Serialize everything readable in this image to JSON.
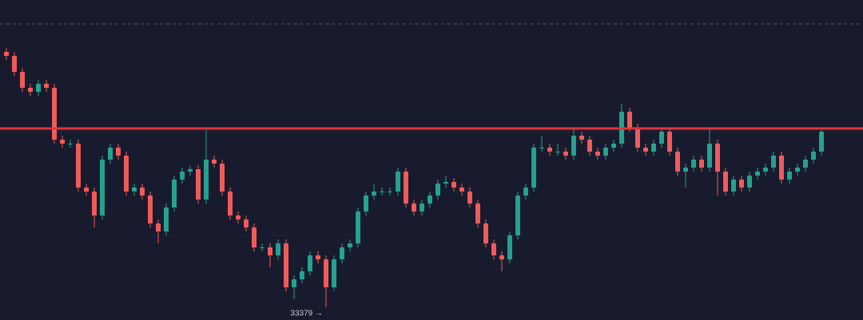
{
  "chart_data": {
    "type": "candlestick",
    "up_color": "#26a18f",
    "down_color": "#ef5b5b",
    "ylim": [
      33315,
      34919
    ],
    "open": [
      34659,
      34639,
      34559,
      34479,
      34459,
      34499,
      34479,
      34219,
      34199,
      34199,
      33979,
      33959,
      33839,
      34119,
      34179,
      34139,
      33959,
      33979,
      33939,
      33799,
      33759,
      33879,
      34019,
      34059,
      34071,
      33919,
      34119,
      34099,
      33959,
      33839,
      33819,
      33779,
      33679,
      33679,
      33639,
      33699,
      33479,
      33519,
      33559,
      33639,
      33619,
      33479,
      33619,
      33679,
      33699,
      33859,
      33939,
      33959,
      33959,
      33959,
      34059,
      33899,
      33859,
      33899,
      33939,
      33999,
      34007,
      33979,
      33959,
      33899,
      33799,
      33699,
      33639,
      33619,
      33739,
      33939,
      33979,
      34179,
      34179,
      34159,
      34159,
      34139,
      34239,
      34219,
      34159,
      34139,
      34179,
      34199,
      34359,
      34279,
      34179,
      34159,
      34199,
      34259,
      34159,
      34059,
      34079,
      34119,
      34079,
      34199,
      34059,
      33959,
      34019,
      33979,
      34039,
      34059,
      34079,
      34139,
      34019,
      34059,
      34079,
      34119,
      34159
    ],
    "high": [
      34679,
      34659,
      34579,
      34499,
      34519,
      34519,
      34499,
      34239,
      34219,
      34219,
      33999,
      33979,
      34139,
      34199,
      34199,
      34159,
      33999,
      33999,
      33959,
      33819,
      33899,
      34039,
      34079,
      34091,
      34091,
      34279,
      34139,
      34119,
      33979,
      33859,
      33839,
      33799,
      33699,
      33699,
      33719,
      33719,
      33539,
      33579,
      33659,
      33659,
      33639,
      33639,
      33699,
      33719,
      33879,
      33959,
      33999,
      33979,
      33979,
      34079,
      34079,
      33919,
      33919,
      33959,
      34019,
      34039,
      34027,
      33999,
      33979,
      33919,
      33819,
      33719,
      33659,
      33759,
      33959,
      33999,
      34199,
      34239,
      34199,
      34199,
      34179,
      34279,
      34259,
      34239,
      34179,
      34199,
      34219,
      34399,
      34379,
      34299,
      34199,
      34219,
      34279,
      34279,
      34179,
      34099,
      34139,
      34139,
      34279,
      34219,
      34079,
      34039,
      34039,
      34059,
      34079,
      34099,
      34159,
      34159,
      34079,
      34099,
      34139,
      34179,
      34279
    ],
    "low": [
      34619,
      34539,
      34459,
      34439,
      34439,
      34459,
      34199,
      34179,
      34179,
      33959,
      33939,
      33779,
      33819,
      34099,
      34119,
      33939,
      33939,
      33919,
      33779,
      33699,
      33739,
      33859,
      33999,
      34039,
      33899,
      33899,
      34079,
      33939,
      33819,
      33799,
      33759,
      33659,
      33659,
      33579,
      33619,
      33459,
      33419,
      33499,
      33539,
      33599,
      33379,
      33459,
      33599,
      33659,
      33679,
      33839,
      33919,
      33939,
      33939,
      33939,
      33879,
      33839,
      33839,
      33879,
      33919,
      33979,
      33959,
      33939,
      33879,
      33779,
      33679,
      33619,
      33559,
      33599,
      33719,
      33919,
      33959,
      34159,
      34139,
      34139,
      34119,
      34119,
      34199,
      34139,
      34119,
      34119,
      34159,
      34179,
      34259,
      34159,
      34139,
      34139,
      34179,
      34139,
      34039,
      33979,
      34059,
      34059,
      34059,
      33939,
      33939,
      33939,
      33959,
      33959,
      34019,
      34039,
      34059,
      33999,
      33999,
      34039,
      34059,
      34099,
      34139
    ],
    "close": [
      34639,
      34559,
      34479,
      34459,
      34499,
      34479,
      34219,
      34199,
      34199,
      33979,
      33959,
      33839,
      34119,
      34179,
      34139,
      33959,
      33979,
      33939,
      33799,
      33759,
      33879,
      34019,
      34059,
      34071,
      33919,
      34119,
      34099,
      33959,
      33839,
      33819,
      33779,
      33679,
      33679,
      33639,
      33699,
      33479,
      33519,
      33559,
      33639,
      33619,
      33479,
      33619,
      33679,
      33699,
      33859,
      33939,
      33959,
      33959,
      33959,
      34059,
      33899,
      33859,
      33899,
      33939,
      33999,
      34007,
      33979,
      33959,
      33899,
      33799,
      33699,
      33639,
      33619,
      33739,
      33939,
      33979,
      34179,
      34179,
      34159,
      34159,
      34139,
      34239,
      34219,
      34159,
      34139,
      34179,
      34199,
      34359,
      34279,
      34179,
      34159,
      34199,
      34259,
      34159,
      34059,
      34079,
      34119,
      34079,
      34199,
      34059,
      33959,
      34019,
      33979,
      34039,
      34059,
      34079,
      34139,
      34019,
      34059,
      34079,
      34119,
      34159,
      34259
    ],
    "hlines": [
      {
        "value": 34275,
        "color": "#e0343c",
        "style": "solid"
      },
      {
        "value": 34799,
        "color": "#555a6b",
        "style": "dashed"
      }
    ],
    "annotation": {
      "text": "33379 →",
      "value": 33379
    }
  }
}
